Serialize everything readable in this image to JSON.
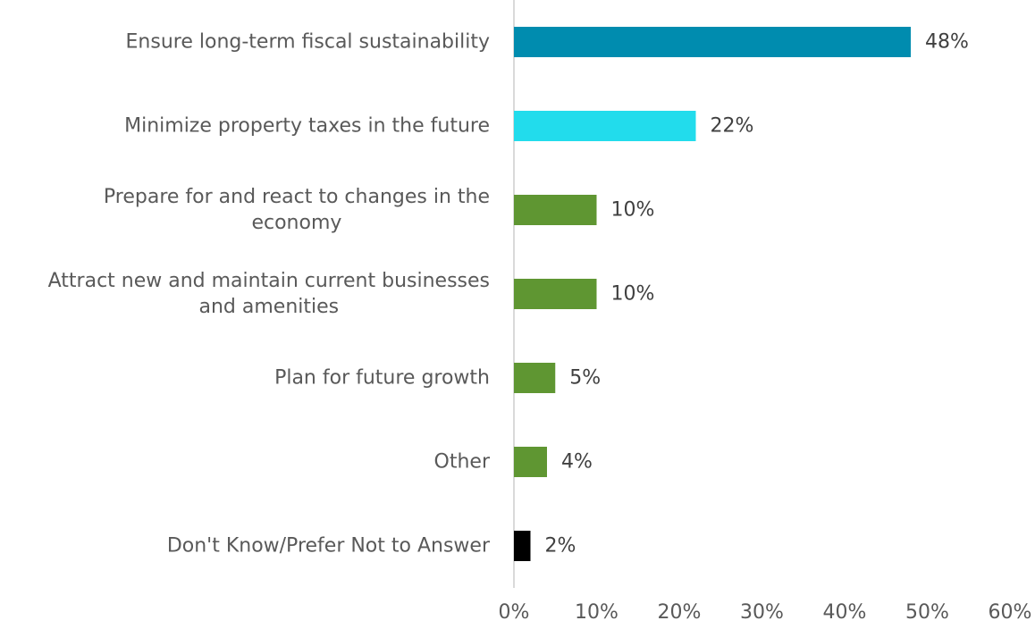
{
  "chart_data": {
    "type": "bar",
    "orientation": "horizontal",
    "categories": [
      [
        "Ensure long-term fiscal sustainability"
      ],
      [
        "Minimize property taxes in the future"
      ],
      [
        "Prepare for and react to changes in the",
        "economy"
      ],
      [
        "Attract new and maintain current businesses",
        "and amenities"
      ],
      [
        "Plan for future growth"
      ],
      [
        "Other"
      ],
      [
        "Don't Know/Prefer Not to Answer"
      ]
    ],
    "values": [
      48,
      22,
      10,
      10,
      5,
      4,
      2
    ],
    "value_labels": [
      "48%",
      "22%",
      "10%",
      "10%",
      "5%",
      "4%",
      "2%"
    ],
    "bar_colors": [
      "#008caf",
      "#22dcec",
      "#5f9632",
      "#5f9632",
      "#5f9632",
      "#5f9632",
      "#000000"
    ],
    "xlim": [
      0,
      60
    ],
    "xticks": [
      0,
      10,
      20,
      30,
      40,
      50,
      60
    ],
    "xtick_labels": [
      "0%",
      "10%",
      "20%",
      "30%",
      "40%",
      "50%",
      "60%"
    ],
    "axis_color": "#d9d9d9",
    "grid": false,
    "legend": "none",
    "title": "",
    "xlabel": "",
    "ylabel": ""
  }
}
